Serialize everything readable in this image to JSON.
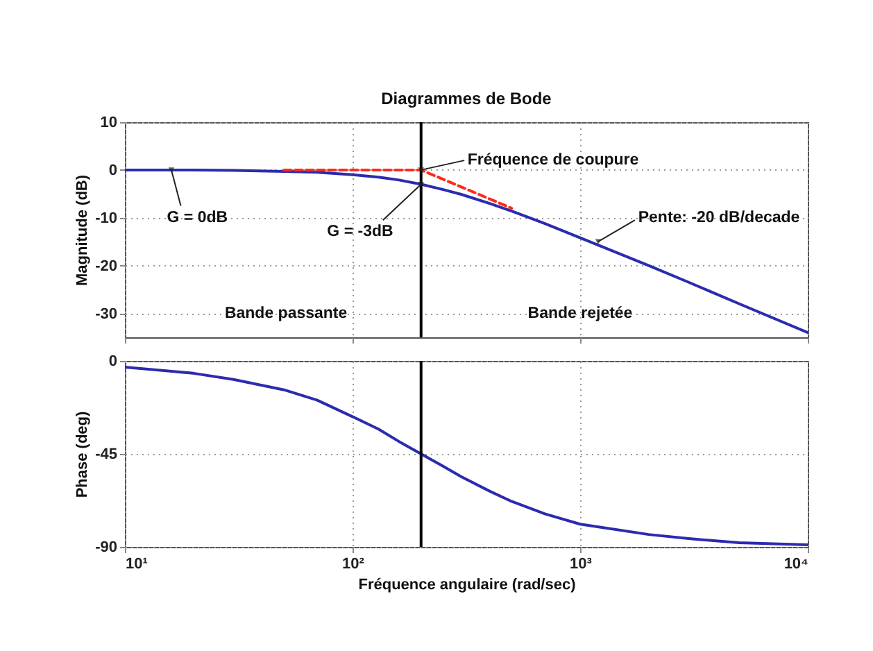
{
  "chart_data": [
    {
      "type": "line",
      "title": "Diagrammes de Bode",
      "ylabel": "Magnitude (dB)",
      "log": "x",
      "grid": true,
      "tick_labels": "y",
      "x": [
        10,
        20,
        30,
        50,
        70,
        100,
        130,
        160,
        200,
        250,
        300,
        400,
        500,
        700,
        1000,
        2000,
        3000,
        5000,
        10000
      ],
      "xlim": [
        10,
        10000
      ],
      "xticks": [
        {
          "value": 10,
          "label": null
        },
        {
          "value": 100,
          "label": null
        },
        {
          "value": 1000,
          "label": null
        },
        {
          "value": 10000,
          "label": null
        }
      ],
      "ylim": [
        -35,
        10
      ],
      "yticks": [
        10,
        0,
        -10,
        -20,
        -30
      ],
      "series": [
        {
          "color": "#2b2bb0",
          "values": [
            0,
            0,
            -0.1,
            -0.3,
            -0.5,
            -1,
            -1.5,
            -2.1,
            -3,
            -4.1,
            -5.1,
            -7,
            -8.6,
            -11.2,
            -14.2,
            -20,
            -23.5,
            -28,
            -34
          ]
        },
        {
          "color": "#ff2a1a",
          "line_style": "dashed",
          "x": [
            50,
            200,
            500
          ],
          "values": [
            0,
            0,
            -8
          ]
        }
      ],
      "ref_lines": [
        {
          "axis": "x",
          "value": 200,
          "color": "#000000"
        }
      ],
      "annotations": [
        {
          "text": "Fréquence de coupure",
          "x": 200,
          "y": 0
        },
        {
          "text": "G = -3dB",
          "x": 200,
          "y": -3
        },
        {
          "text": "G = 0dB",
          "x": 16,
          "y": 0
        },
        {
          "text": "Pente: -20 dB/decade",
          "x": 1200,
          "y": -15
        },
        "Bande passante",
        "Bande rejetée"
      ]
    },
    {
      "type": "line",
      "ylabel": "Phase (deg)",
      "xlabel": "Fréquence angulaire  (rad/sec)",
      "log": "x",
      "grid": true,
      "x": [
        10,
        20,
        30,
        50,
        70,
        100,
        130,
        160,
        200,
        250,
        300,
        400,
        500,
        700,
        1000,
        2000,
        3000,
        5000,
        10000
      ],
      "xlim": [
        10,
        10000
      ],
      "xticks": [
        {
          "value": 10,
          "label": "10¹"
        },
        {
          "value": 100,
          "label": "10²"
        },
        {
          "value": 1000,
          "label": "10³"
        },
        {
          "value": 10000,
          "label": "10⁴"
        }
      ],
      "ylim": [
        -90,
        0
      ],
      "yticks": [
        0,
        -45,
        -90
      ],
      "series": [
        {
          "color": "#2b2bb0",
          "values": [
            -3,
            -6,
            -9,
            -14,
            -19,
            -27,
            -33,
            -39,
            -45,
            -51,
            -56,
            -63,
            -68,
            -74,
            -79,
            -84,
            -86,
            -88,
            -89
          ]
        }
      ],
      "ref_lines": [
        {
          "axis": "x",
          "value": 200,
          "color": "#000000"
        }
      ]
    }
  ]
}
